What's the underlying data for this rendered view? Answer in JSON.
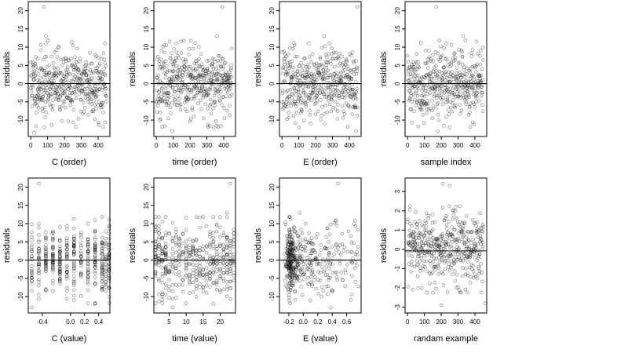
{
  "chart_data": [
    {
      "type": "scatter",
      "xlabel": "C (order)",
      "ylabel": "residuals",
      "xlim": [
        -15,
        470
      ],
      "ylim": [
        -14.5,
        22.5
      ],
      "xticks": [
        0,
        100,
        200,
        300,
        400
      ],
      "xtick_labels": [
        "0",
        "100",
        "200",
        "300",
        "400"
      ],
      "yticks": [
        -10,
        -5,
        0,
        5,
        10,
        15,
        20
      ],
      "ytick_labels": [
        "-10",
        "-5",
        "0",
        "5",
        "10",
        "15",
        "20"
      ],
      "hline": 0,
      "x_kind": "index",
      "n": 450,
      "seed": 11,
      "outliers": [
        [
          78,
          21
        ],
        [
          90,
          13
        ],
        [
          440,
          11
        ],
        [
          20,
          -13.5
        ],
        [
          80,
          -12
        ]
      ]
    },
    {
      "type": "scatter",
      "xlabel": "time (order)",
      "ylabel": "residuals",
      "xlim": [
        -15,
        470
      ],
      "ylim": [
        -14.5,
        22.5
      ],
      "xticks": [
        0,
        100,
        200,
        300,
        400
      ],
      "xtick_labels": [
        "0",
        "100",
        "200",
        "300",
        "400"
      ],
      "yticks": [
        -10,
        -5,
        0,
        5,
        10,
        15,
        20
      ],
      "ytick_labels": [
        "-10",
        "-5",
        "0",
        "5",
        "10",
        "15",
        "20"
      ],
      "hline": 0,
      "x_kind": "index",
      "n": 450,
      "seed": 23,
      "outliers": [
        [
          392,
          21
        ],
        [
          360,
          13
        ],
        [
          118,
          11
        ],
        [
          95,
          -13
        ],
        [
          340,
          -12
        ]
      ]
    },
    {
      "type": "scatter",
      "xlabel": "E (order)",
      "ylabel": "residuals",
      "xlim": [
        -15,
        470
      ],
      "ylim": [
        -14.5,
        22.5
      ],
      "xticks": [
        0,
        100,
        200,
        300,
        400
      ],
      "xtick_labels": [
        "0",
        "100",
        "200",
        "300",
        "400"
      ],
      "yticks": [
        -10,
        -5,
        0,
        5,
        10,
        15,
        20
      ],
      "ytick_labels": [
        "-10",
        "-5",
        "0",
        "5",
        "10",
        "15",
        "20"
      ],
      "hline": 0,
      "x_kind": "index",
      "n": 450,
      "seed": 37,
      "outliers": [
        [
          448,
          21
        ],
        [
          250,
          13
        ],
        [
          160,
          11
        ],
        [
          440,
          -13
        ],
        [
          100,
          -12
        ]
      ]
    },
    {
      "type": "scatter",
      "xlabel": "sample index",
      "ylabel": "residuals",
      "xlim": [
        -15,
        470
      ],
      "ylim": [
        -14.5,
        22.5
      ],
      "xticks": [
        0,
        100,
        200,
        300,
        400
      ],
      "xtick_labels": [
        "0",
        "100",
        "200",
        "300",
        "400"
      ],
      "yticks": [
        -10,
        -5,
        0,
        5,
        10,
        15,
        20
      ],
      "ytick_labels": [
        "-10",
        "-5",
        "0",
        "5",
        "10",
        "15",
        "20"
      ],
      "hline": 0,
      "x_kind": "index",
      "n": 450,
      "seed": 41,
      "outliers": [
        [
          170,
          21
        ],
        [
          330,
          13
        ],
        [
          230,
          11
        ],
        [
          180,
          -13
        ],
        [
          250,
          -12
        ]
      ]
    },
    {
      "type": "scatter",
      "xlabel": "C (value)",
      "ylabel": "residuals",
      "xlim": [
        -0.6,
        0.56
      ],
      "ylim": [
        -14.5,
        22.5
      ],
      "xticks": [
        -0.4,
        0.0,
        0.2,
        0.4
      ],
      "xtick_labels": [
        "-0.4",
        "0.0",
        "0.2",
        "0.4"
      ],
      "yticks": [
        -10,
        -5,
        0,
        5,
        10,
        15,
        20
      ],
      "ytick_labels": [
        "-10",
        "-5",
        "0",
        "5",
        "10",
        "15",
        "20"
      ],
      "hline": 0,
      "x_kind": "discrete",
      "x_levels": [
        -0.55,
        -0.45,
        -0.35,
        -0.25,
        -0.15,
        -0.05,
        0.05,
        0.15,
        0.25,
        0.35,
        0.45,
        0.5,
        0.55
      ],
      "n": 450,
      "seed": 53,
      "outliers": [
        [
          -0.45,
          21
        ],
        [
          0.55,
          11
        ],
        [
          -0.55,
          -13
        ],
        [
          0.35,
          -12
        ]
      ]
    },
    {
      "type": "scatter",
      "xlabel": "time (value)",
      "ylabel": "residuals",
      "xlim": [
        0.5,
        24.5
      ],
      "ylim": [
        -14.5,
        22.5
      ],
      "xticks": [
        5,
        10,
        15,
        20
      ],
      "xtick_labels": [
        "5",
        "10",
        "15",
        "20"
      ],
      "yticks": [
        -10,
        -5,
        0,
        5,
        10,
        15,
        20
      ],
      "ytick_labels": [
        "-10",
        "-5",
        "0",
        "5",
        "10",
        "15",
        "20"
      ],
      "hline": 0,
      "x_kind": "discrete",
      "x_levels": [
        1,
        2,
        3,
        4,
        5,
        6,
        7,
        8,
        9,
        10,
        11,
        12,
        13,
        14,
        15,
        16,
        17,
        18,
        19,
        20,
        21,
        22,
        23,
        24
      ],
      "n": 450,
      "seed": 67,
      "outliers": [
        [
          23,
          21
        ],
        [
          22,
          13
        ],
        [
          6,
          -13
        ],
        [
          18,
          -12
        ]
      ]
    },
    {
      "type": "scatter",
      "xlabel": "E (value)",
      "ylabel": "residuals",
      "xlim": [
        -0.33,
        0.8
      ],
      "ylim": [
        -14.5,
        22.5
      ],
      "xticks": [
        -0.2,
        0.0,
        0.2,
        0.4,
        0.6
      ],
      "xtick_labels": [
        "-0.2",
        "0.0",
        "0.2",
        "0.4",
        "0.6"
      ],
      "yticks": [
        -10,
        -5,
        0,
        5,
        10,
        15,
        20
      ],
      "ytick_labels": [
        "-10",
        "-5",
        "0",
        "5",
        "10",
        "15",
        "20"
      ],
      "hline": 0,
      "x_kind": "skewed",
      "n": 450,
      "seed": 79,
      "outliers": [
        [
          0.48,
          21
        ],
        [
          -0.05,
          13
        ],
        [
          0.38,
          -13
        ],
        [
          0.72,
          -6
        ]
      ]
    },
    {
      "type": "scatter",
      "xlabel": "randam example",
      "ylabel": "residuals",
      "xlim": [
        -15,
        470
      ],
      "ylim": [
        -3.3,
        3.7
      ],
      "xticks": [
        0,
        100,
        200,
        300,
        400
      ],
      "xtick_labels": [
        "0",
        "100",
        "200",
        "300",
        "400"
      ],
      "yticks": [
        -3,
        -2,
        -1,
        0,
        1,
        2,
        3
      ],
      "ytick_labels": [
        "-3",
        "-2",
        "-1",
        "0",
        "1",
        "2",
        "3"
      ],
      "hline": -0.08,
      "x_kind": "index",
      "n": 450,
      "seed": 97,
      "scale": 1.0,
      "outliers": [
        [
          210,
          3.4
        ],
        [
          250,
          3.3
        ],
        [
          200,
          -2.9
        ],
        [
          460,
          -2.8
        ]
      ]
    }
  ]
}
